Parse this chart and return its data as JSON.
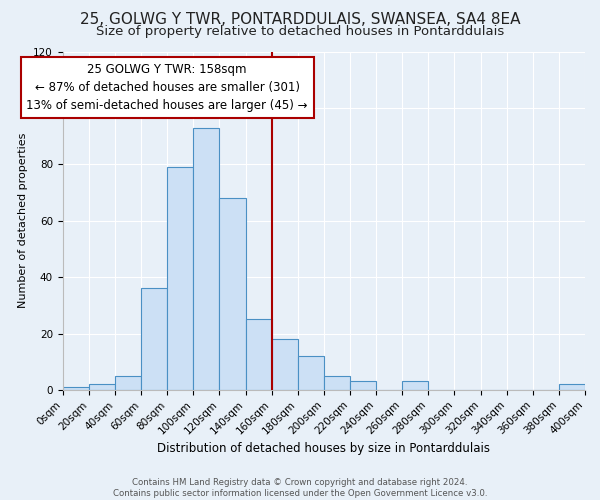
{
  "title": "25, GOLWG Y TWR, PONTARDDULAIS, SWANSEA, SA4 8EA",
  "subtitle": "Size of property relative to detached houses in Pontarddulais",
  "xlabel": "Distribution of detached houses by size in Pontarddulais",
  "ylabel": "Number of detached properties",
  "footer_line1": "Contains HM Land Registry data © Crown copyright and database right 2024.",
  "footer_line2": "Contains public sector information licensed under the Open Government Licence v3.0.",
  "bin_edges": [
    0,
    20,
    40,
    60,
    80,
    100,
    120,
    140,
    160,
    180,
    200,
    220,
    240,
    260,
    280,
    300,
    320,
    340,
    360,
    380,
    400
  ],
  "bar_heights": [
    1,
    2,
    5,
    36,
    79,
    93,
    68,
    25,
    18,
    12,
    5,
    3,
    0,
    3,
    0,
    0,
    0,
    0,
    0,
    2
  ],
  "bar_facecolor": "#cce0f5",
  "bar_edgecolor": "#4a90c4",
  "vline_x": 160,
  "vline_color": "#aa0000",
  "annotation_title": "25 GOLWG Y TWR: 158sqm",
  "annotation_line1": "← 87% of detached houses are smaller (301)",
  "annotation_line2": "13% of semi-detached houses are larger (45) →",
  "annotation_box_edgecolor": "#aa0000",
  "annotation_box_facecolor": "#ffffff",
  "ylim": [
    0,
    120
  ],
  "xlim": [
    0,
    400
  ],
  "background_color": "#e8f0f8",
  "axes_background": "#e8f0f8",
  "grid_color": "#ffffff",
  "title_fontsize": 11,
  "subtitle_fontsize": 9.5,
  "xlabel_fontsize": 8.5,
  "ylabel_fontsize": 8,
  "tick_label_fontsize": 7.5,
  "annotation_fontsize": 8.5,
  "footer_fontsize": 6.2
}
